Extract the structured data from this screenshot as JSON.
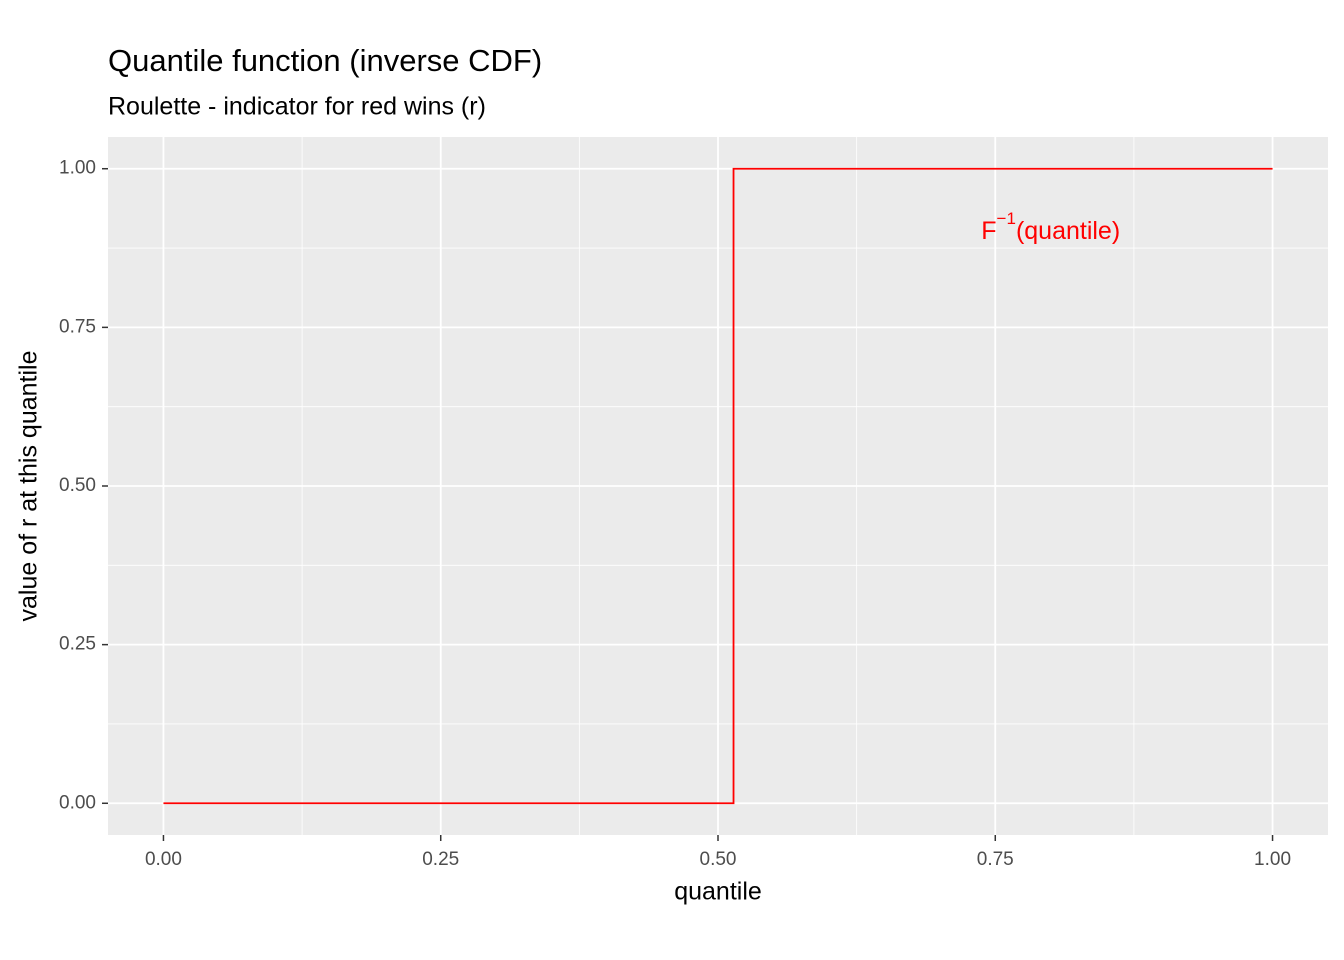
{
  "chart_data": {
    "type": "line",
    "title": "Quantile function (inverse CDF)",
    "subtitle": "Roulette - indicator for red wins (r)",
    "x_label": "quantile",
    "y_label": "value of r at this quantile",
    "x": [
      0,
      0.514,
      0.514,
      1
    ],
    "series": [
      {
        "name": "F^-1(quantile)",
        "color": "#ff0000",
        "values": [
          0,
          0,
          1,
          1
        ]
      }
    ],
    "xlim": [
      -0.05,
      1.05
    ],
    "ylim": [
      -0.05,
      1.05
    ],
    "xticks": [
      {
        "value": 0,
        "label": "0.00"
      },
      {
        "value": 0.25,
        "label": "0.25"
      },
      {
        "value": 0.5,
        "label": "0.50"
      },
      {
        "value": 0.75,
        "label": "0.75"
      },
      {
        "value": 1,
        "label": "1.00"
      }
    ],
    "yticks": [
      {
        "value": 0,
        "label": "0.00"
      },
      {
        "value": 0.25,
        "label": "0.25"
      },
      {
        "value": 0.5,
        "label": "0.50"
      },
      {
        "value": 0.75,
        "label": "0.75"
      },
      {
        "value": 1,
        "label": "1.00"
      }
    ],
    "x_minor": [
      0.125,
      0.375,
      0.625,
      0.875
    ],
    "y_minor": [
      0.125,
      0.375,
      0.625,
      0.875
    ],
    "grid": true,
    "annotation": {
      "base": "F",
      "superscript": "−1",
      "text": "(quantile)",
      "x": 0.8,
      "y": 0.9,
      "color": "#ff0000"
    }
  }
}
